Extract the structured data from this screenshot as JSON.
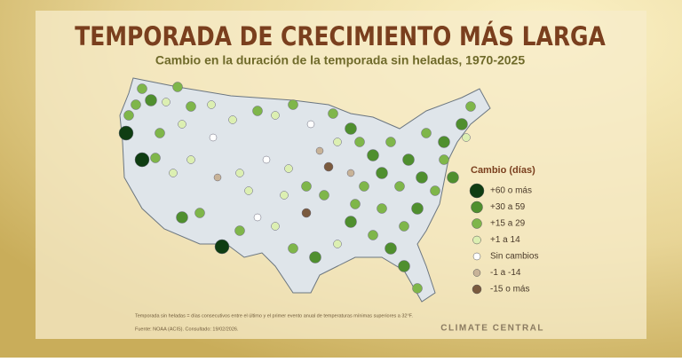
{
  "header": {
    "title": "TEMPORADA DE CRECIMIENTO MÁS LARGA",
    "subtitle": "Cambio en la duración de la temporada sin heladas, 1970-2025"
  },
  "legend": {
    "title": "Cambio (días)",
    "items": [
      {
        "label": "+60 o más",
        "color": "#0f3d12"
      },
      {
        "label": "+30 a 59",
        "color": "#4f8f2e"
      },
      {
        "label": "+15 a 29",
        "color": "#7fb64a"
      },
      {
        "label": "+1 a 14",
        "color": "#dcefb2"
      },
      {
        "label": "Sin cambios",
        "color": "#ffffff"
      },
      {
        "label": "-1 a -14",
        "color": "#c8b398"
      },
      {
        "label": "-15 o más",
        "color": "#7a5a3e"
      }
    ]
  },
  "footnote": {
    "definition": "Temporada sin heladas = días consecutivos entre el último y el primer evento anual de temperaturas mínimas superiores a 32°F.",
    "source": "Fuente: NOAA (ACIS). Consultado: 19/02/2026."
  },
  "brand": "CLIMATE CENTRAL"
}
